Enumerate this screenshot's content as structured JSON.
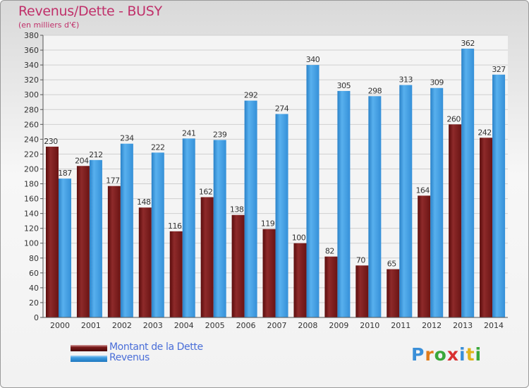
{
  "header": {
    "title": "Revenus/Dette - BUSY",
    "subtitle": "(en milliers d'€)"
  },
  "legend": {
    "items": [
      {
        "label": "Montant de la Dette",
        "color": "#7a1a1a"
      },
      {
        "label": "Revenus",
        "color": "#3d9be0"
      }
    ]
  },
  "logo": {
    "text": "Proxiti",
    "letters": [
      "P",
      "r",
      "o",
      "x",
      "i",
      "t",
      "i"
    ],
    "colors": [
      "#3a8fd8",
      "#e07b1a",
      "#3aa83a",
      "#d93030",
      "#3a8fd8",
      "#e0b41a",
      "#3aa83a"
    ]
  },
  "chart_data": {
    "type": "bar",
    "title": "Revenus/Dette - BUSY",
    "subtitle": "(en milliers d'€)",
    "categories": [
      "2000",
      "2001",
      "2002",
      "2003",
      "2004",
      "2005",
      "2006",
      "2007",
      "2008",
      "2009",
      "2010",
      "2011",
      "2012",
      "2013",
      "2014"
    ],
    "series": [
      {
        "name": "Montant de la Dette",
        "color": "#7a1a1a",
        "values": [
          230,
          204,
          177,
          148,
          116,
          162,
          138,
          119,
          100,
          82,
          70,
          65,
          164,
          260,
          242
        ]
      },
      {
        "name": "Revenus",
        "color": "#3d9be0",
        "values": [
          187,
          212,
          234,
          222,
          241,
          239,
          292,
          274,
          340,
          305,
          298,
          313,
          309,
          362,
          327
        ]
      }
    ],
    "ylim": [
      0,
      380
    ],
    "ytick_step": 20,
    "grid": true,
    "legend_position": "bottom-left"
  }
}
